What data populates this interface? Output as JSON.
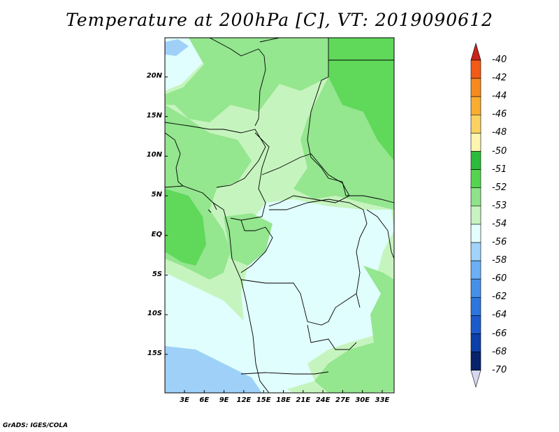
{
  "title": "Temperature at 200hPa [C], VT: 2019090612",
  "credit": "GrADS: IGES/COLA",
  "y_axis_labels": [
    "20N",
    "15N",
    "10N",
    "5N",
    "EQ",
    "5S",
    "10S",
    "15S"
  ],
  "x_axis_labels": [
    "3E",
    "6E",
    "9E",
    "12E",
    "15E",
    "18E",
    "21E",
    "24E",
    "27E",
    "30E",
    "33E"
  ],
  "colorbar": {
    "labels": [
      "-40",
      "-42",
      "-44",
      "-46",
      "-48",
      "-50",
      "-51",
      "-52",
      "-53",
      "-54",
      "-56",
      "-58",
      "-60",
      "-62",
      "-64",
      "-66",
      "-68",
      "-70"
    ],
    "colors": [
      "#e8201a",
      "#f25a17",
      "#f78a1e",
      "#f9ad2f",
      "#fbd262",
      "#fef5ae",
      "#2dbb3e",
      "#55d54f",
      "#8ee38a",
      "#c7f3c0",
      "#e2fefe",
      "#a1d3fb",
      "#6bb0f4",
      "#4591ea",
      "#2c76dc",
      "#1c5bcc",
      "#0c3fa8",
      "#06236c"
    ],
    "top_arrow_color": "#c8241a",
    "bottom_arrow_color": "#d7d7f0"
  },
  "map_colors": {
    "c53": "#94e68f",
    "c54": "#c6f4be",
    "c52": "#60d85a",
    "c56": "#e0fefd",
    "c58": "#9fd1f8"
  }
}
